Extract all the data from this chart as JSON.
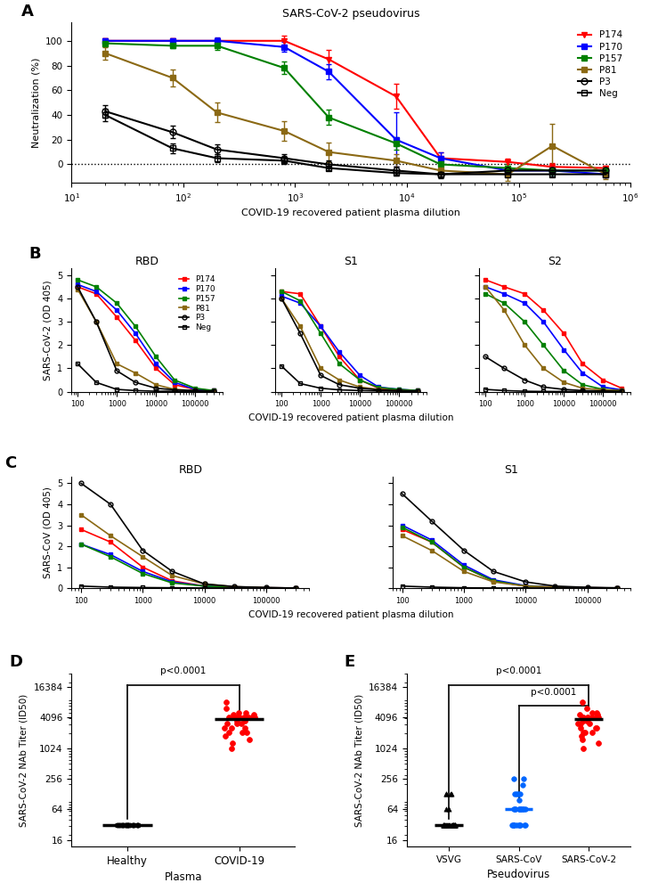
{
  "panel_A": {
    "title": "SARS-CoV-2 pseudovirus",
    "xlabel": "COVID-19 recovered patient plasma dilution",
    "ylabel": "Neutralization (%)",
    "series": {
      "P174": {
        "color": "#ff0000",
        "marker": "v",
        "x": [
          20,
          80,
          200,
          800,
          2000,
          8000,
          20000,
          80000,
          200000,
          600000
        ],
        "y": [
          100,
          100,
          100,
          100,
          85,
          55,
          5,
          2,
          -2,
          -3
        ],
        "yerr": [
          2,
          2,
          2,
          4,
          8,
          10,
          5,
          3,
          3,
          2
        ]
      },
      "P170": {
        "color": "#0000ff",
        "marker": "s",
        "x": [
          20,
          80,
          200,
          800,
          2000,
          8000,
          20000,
          80000,
          200000,
          600000
        ],
        "y": [
          100,
          100,
          100,
          95,
          75,
          20,
          5,
          -5,
          -5,
          -8
        ],
        "yerr": [
          2,
          2,
          3,
          4,
          6,
          22,
          5,
          3,
          3,
          2
        ]
      },
      "P157": {
        "color": "#008000",
        "marker": "s",
        "x": [
          20,
          80,
          200,
          800,
          2000,
          8000,
          20000,
          80000,
          200000,
          600000
        ],
        "y": [
          98,
          96,
          96,
          78,
          38,
          17,
          0,
          -3,
          -5,
          -5
        ],
        "yerr": [
          2,
          2,
          3,
          5,
          6,
          5,
          3,
          3,
          3,
          2
        ]
      },
      "P81": {
        "color": "#8B6914",
        "marker": "s",
        "x": [
          20,
          80,
          200,
          800,
          2000,
          8000,
          20000,
          80000,
          200000,
          600000
        ],
        "y": [
          90,
          70,
          42,
          27,
          10,
          3,
          -5,
          -8,
          15,
          -8
        ],
        "yerr": [
          5,
          7,
          8,
          8,
          8,
          5,
          5,
          5,
          18,
          4
        ]
      },
      "P3": {
        "color": "#000000",
        "marker": "o",
        "filled": false,
        "x": [
          20,
          80,
          200,
          800,
          2000,
          8000,
          20000,
          80000,
          200000,
          600000
        ],
        "y": [
          43,
          26,
          12,
          5,
          0,
          -5,
          -8,
          -5,
          -5,
          -5
        ],
        "yerr": [
          5,
          5,
          4,
          3,
          3,
          3,
          3,
          2,
          2,
          2
        ]
      },
      "Neg": {
        "color": "#000000",
        "marker": "s",
        "filled": false,
        "x": [
          20,
          80,
          200,
          800,
          2000,
          8000,
          20000,
          80000,
          200000,
          600000
        ],
        "y": [
          40,
          13,
          5,
          3,
          -3,
          -7,
          -8,
          -8,
          -8,
          -8
        ],
        "yerr": [
          5,
          4,
          3,
          3,
          2,
          2,
          2,
          2,
          2,
          2
        ]
      }
    }
  },
  "panel_B": {
    "xlabel": "COVID-19 recovered patient plasma dilution",
    "ylabel": "SARS-CoV-2 (OD 405)",
    "subplots": [
      "RBD",
      "S1",
      "S2"
    ],
    "RBD": {
      "x": [
        100,
        300,
        1000,
        3000,
        10000,
        30000,
        100000,
        300000
      ],
      "P174": [
        4.5,
        4.2,
        3.2,
        2.2,
        1.0,
        0.3,
        0.1,
        0.05
      ],
      "P170": [
        4.6,
        4.3,
        3.5,
        2.5,
        1.2,
        0.4,
        0.1,
        0.05
      ],
      "P157": [
        4.8,
        4.5,
        3.8,
        2.8,
        1.5,
        0.5,
        0.15,
        0.05
      ],
      "P81": [
        4.4,
        3.0,
        1.2,
        0.8,
        0.3,
        0.1,
        0.05,
        0.02
      ],
      "P3": [
        4.5,
        3.0,
        0.9,
        0.4,
        0.15,
        0.08,
        0.05,
        0.03
      ],
      "Neg": [
        1.2,
        0.4,
        0.1,
        0.05,
        0.02,
        0.02,
        0.01,
        0.01
      ]
    },
    "S1": {
      "x": [
        100,
        300,
        1000,
        3000,
        10000,
        30000,
        100000,
        300000
      ],
      "P174": [
        4.3,
        4.2,
        2.8,
        1.5,
        0.5,
        0.15,
        0.08,
        0.05
      ],
      "P170": [
        4.1,
        3.8,
        2.8,
        1.7,
        0.7,
        0.2,
        0.1,
        0.05
      ],
      "P157": [
        4.3,
        3.9,
        2.5,
        1.2,
        0.5,
        0.18,
        0.1,
        0.05
      ],
      "P81": [
        4.0,
        2.8,
        1.0,
        0.5,
        0.2,
        0.1,
        0.05,
        0.03
      ],
      "P3": [
        4.0,
        2.5,
        0.7,
        0.3,
        0.15,
        0.08,
        0.05,
        0.03
      ],
      "Neg": [
        1.1,
        0.35,
        0.15,
        0.08,
        0.05,
        0.03,
        0.02,
        0.01
      ]
    },
    "S2": {
      "x": [
        100,
        300,
        1000,
        3000,
        10000,
        30000,
        100000,
        300000
      ],
      "P174": [
        4.8,
        4.5,
        4.2,
        3.5,
        2.5,
        1.2,
        0.5,
        0.15
      ],
      "P170": [
        4.5,
        4.2,
        3.8,
        3.0,
        1.8,
        0.8,
        0.2,
        0.08
      ],
      "P157": [
        4.2,
        3.8,
        3.0,
        2.0,
        0.9,
        0.3,
        0.1,
        0.05
      ],
      "P81": [
        4.5,
        3.5,
        2.0,
        1.0,
        0.4,
        0.15,
        0.08,
        0.05
      ],
      "P3": [
        1.5,
        1.0,
        0.5,
        0.2,
        0.1,
        0.05,
        0.03,
        0.02
      ],
      "Neg": [
        0.1,
        0.05,
        0.02,
        0.01,
        0.01,
        0.01,
        0.01,
        0.01
      ]
    }
  },
  "panel_C": {
    "xlabel": "COVID-19 recovered patient plasma dilution",
    "ylabel": "SARS-CoV (OD 405)",
    "subplots": [
      "RBD",
      "S1"
    ],
    "RBD": {
      "x": [
        100,
        300,
        1000,
        3000,
        10000,
        30000,
        100000,
        300000
      ],
      "P174": [
        2.8,
        2.2,
        1.0,
        0.35,
        0.1,
        0.05,
        0.02,
        0.01
      ],
      "P170": [
        2.1,
        1.6,
        0.8,
        0.3,
        0.1,
        0.05,
        0.02,
        0.01
      ],
      "P157": [
        2.1,
        1.5,
        0.7,
        0.25,
        0.1,
        0.05,
        0.02,
        0.01
      ],
      "P81": [
        3.5,
        2.5,
        1.5,
        0.6,
        0.2,
        0.07,
        0.02,
        0.01
      ],
      "P3": [
        5.0,
        4.0,
        1.8,
        0.8,
        0.2,
        0.08,
        0.03,
        0.01
      ],
      "Neg": [
        0.1,
        0.05,
        0.03,
        0.02,
        0.01,
        0.01,
        0.01,
        0.01
      ]
    },
    "S1": {
      "x": [
        100,
        300,
        1000,
        3000,
        10000,
        30000,
        100000,
        300000
      ],
      "P174": [
        2.8,
        2.2,
        1.0,
        0.35,
        0.1,
        0.05,
        0.02,
        0.01
      ],
      "P170": [
        3.0,
        2.3,
        1.1,
        0.4,
        0.12,
        0.05,
        0.02,
        0.01
      ],
      "P157": [
        2.9,
        2.2,
        1.0,
        0.35,
        0.1,
        0.05,
        0.02,
        0.01
      ],
      "P81": [
        2.5,
        1.8,
        0.8,
        0.3,
        0.1,
        0.05,
        0.02,
        0.01
      ],
      "P3": [
        4.5,
        3.2,
        1.8,
        0.8,
        0.3,
        0.1,
        0.04,
        0.02
      ],
      "Neg": [
        0.1,
        0.05,
        0.02,
        0.01,
        0.01,
        0.01,
        0.01,
        0.01
      ]
    }
  },
  "panel_D": {
    "ylabel": "SARS-CoV-2 NAb Titer (ID50)",
    "xlabel": "Plasma",
    "groups": [
      "Healthy",
      "COVID-19"
    ],
    "healthy_data": [
      32,
      32,
      32,
      32,
      32,
      32,
      32,
      32,
      32,
      32,
      32,
      32,
      32,
      32,
      32,
      32,
      32,
      32,
      32,
      32,
      32,
      32,
      32,
      32,
      32,
      32,
      32,
      32,
      32,
      32,
      32,
      32,
      32,
      32,
      32,
      32,
      32,
      32,
      32,
      32
    ],
    "covid_data": [
      1024,
      1280,
      1536,
      1792,
      2048,
      2048,
      2048,
      2560,
      2560,
      2560,
      3072,
      3072,
      3072,
      3584,
      3584,
      4096,
      4096,
      4096,
      4096,
      4096,
      4096,
      4096,
      4096,
      4096,
      4608,
      4608,
      5120,
      5120,
      6144,
      8192
    ],
    "yticks": [
      16,
      64,
      256,
      1024,
      4096,
      16384
    ],
    "ylim_min": 12,
    "ylim_max": 30000,
    "pvalue": "p<0.0001"
  },
  "panel_E": {
    "ylabel": "SARS-CoV-2 NAb Titer (ID50)",
    "xlabel": "Pseudovirus",
    "groups": [
      "VSVG",
      "SARS-CoV",
      "SARS-CoV-2"
    ],
    "vsvg_data": [
      32,
      32,
      32,
      32,
      32,
      32,
      32,
      32,
      32,
      32,
      32,
      32,
      32,
      32,
      32,
      32,
      32,
      32,
      32,
      32,
      32,
      32,
      32,
      32,
      64,
      64,
      128,
      128,
      128,
      128
    ],
    "sarscov_data": [
      32,
      32,
      32,
      32,
      32,
      32,
      32,
      32,
      32,
      32,
      32,
      32,
      64,
      64,
      64,
      64,
      64,
      64,
      64,
      64,
      64,
      64,
      96,
      128,
      128,
      128,
      128,
      192,
      256,
      256
    ],
    "sarscov2_data": [
      1024,
      1280,
      1536,
      1792,
      2048,
      2048,
      2048,
      2560,
      2560,
      2560,
      3072,
      3072,
      3072,
      3584,
      3584,
      4096,
      4096,
      4096,
      4096,
      4096,
      4096,
      4096,
      4096,
      4096,
      4608,
      4608,
      5120,
      5120,
      6144,
      8192
    ],
    "yticks": [
      16,
      64,
      256,
      1024,
      4096,
      16384
    ],
    "ylim_min": 12,
    "ylim_max": 30000,
    "pvalue1": "p<0.0001",
    "pvalue2": "p<0.0001"
  }
}
